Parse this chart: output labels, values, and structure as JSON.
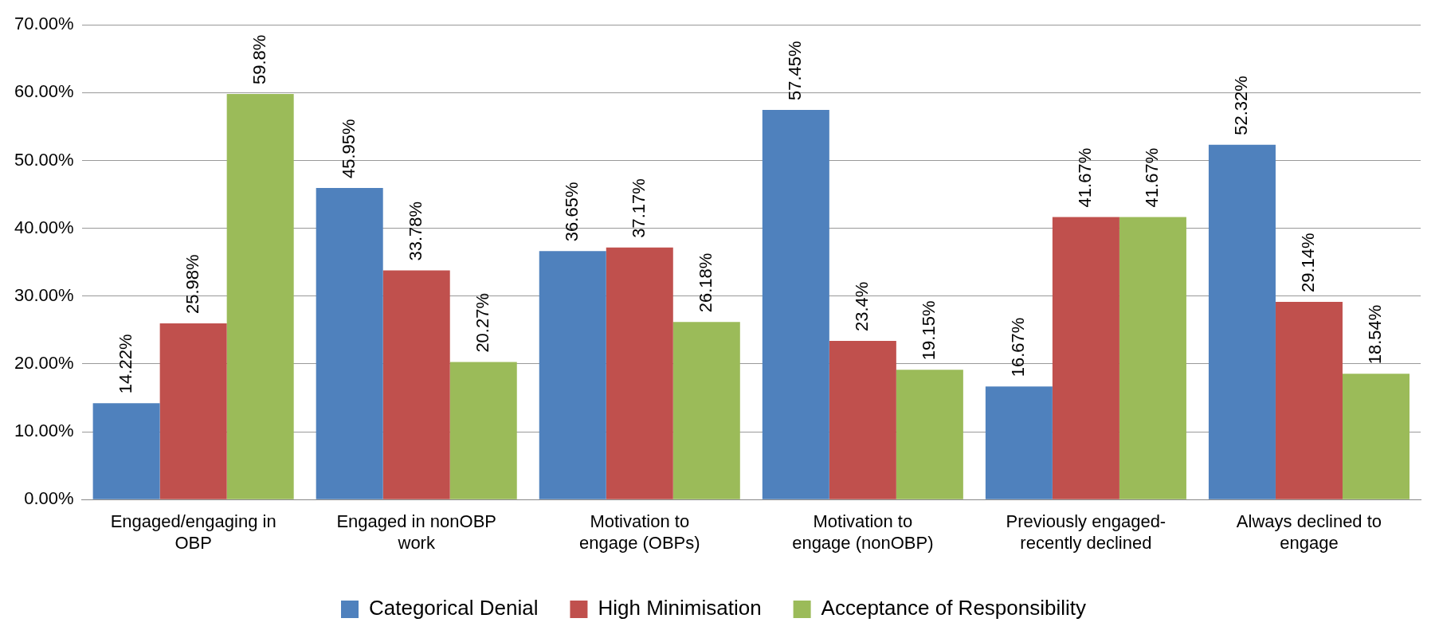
{
  "chart_data": {
    "type": "bar",
    "categories": [
      "Engaged/engaging in OBP",
      "Engaged in nonOBP work",
      "Motivation to engage (OBPs)",
      "Motivation to engage (nonOBP)",
      "Previously engaged-recently declined",
      "Always declined to engage"
    ],
    "series": [
      {
        "name": "Categorical Denial",
        "color": "#4f81bd",
        "values": [
          14.22,
          45.95,
          36.65,
          57.45,
          16.67,
          52.32
        ],
        "value_labels": [
          "14.22%",
          "45.95%",
          "36.65%",
          "57.45%",
          "16.67%",
          "52.32%"
        ]
      },
      {
        "name": "High Minimisation",
        "color": "#c0504d",
        "values": [
          25.98,
          33.78,
          37.17,
          23.4,
          41.67,
          29.14
        ],
        "value_labels": [
          "25.98%",
          "33.78%",
          "37.17%",
          "23.4%",
          "41.67%",
          "29.14%"
        ]
      },
      {
        "name": "Acceptance of Responsibility",
        "color": "#9bbb59",
        "values": [
          59.8,
          20.27,
          26.18,
          19.15,
          41.67,
          18.54
        ],
        "value_labels": [
          "59.8%",
          "20.27%",
          "26.18%",
          "19.15%",
          "41.67%",
          "18.54%"
        ]
      }
    ],
    "ylim": [
      0,
      70
    ],
    "yticks": [
      {
        "value": 0,
        "label": "0.00%"
      },
      {
        "value": 10,
        "label": "10.00%"
      },
      {
        "value": 20,
        "label": "20.00%"
      },
      {
        "value": 30,
        "label": "30.00%"
      },
      {
        "value": 40,
        "label": "40.00%"
      },
      {
        "value": 50,
        "label": "50.00%"
      },
      {
        "value": 60,
        "label": "60.00%"
      },
      {
        "value": 70,
        "label": "70.00%"
      }
    ],
    "grid": "y",
    "legend": "bottom"
  }
}
